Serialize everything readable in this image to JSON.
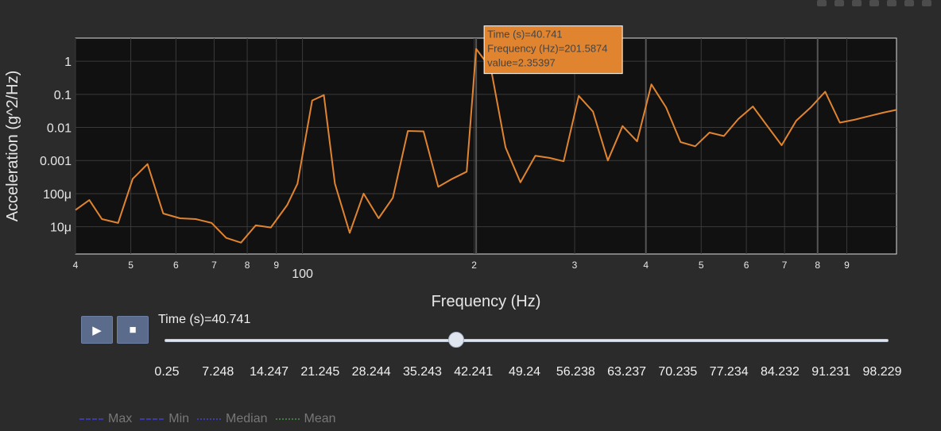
{
  "colors": {
    "background": "#2b2b2b",
    "plot_bg": "#111111",
    "line": "#e08430",
    "tooltip_bg": "#e08430",
    "tooltip_text": "#444444",
    "grid": "#3a3a3a",
    "max_min_line": "#3a3ab0",
    "median_line": "#3a3ab0",
    "mean_line": "#3f7a3f"
  },
  "chart_data": {
    "type": "line",
    "xlabel": "Frequency (Hz)",
    "ylabel": "Acceleration (g^2/Hz)",
    "x_scale": "log",
    "y_scale": "log",
    "xlim": [
      40,
      1100
    ],
    "ylim": [
      1.5e-06,
      5
    ],
    "x_ticks": [
      {
        "v": 40,
        "label": "4"
      },
      {
        "v": 50,
        "label": "5"
      },
      {
        "v": 60,
        "label": "6"
      },
      {
        "v": 70,
        "label": "7"
      },
      {
        "v": 80,
        "label": "8"
      },
      {
        "v": 90,
        "label": "9"
      },
      {
        "v": 100,
        "label": "100"
      },
      {
        "v": 200,
        "label": "2"
      },
      {
        "v": 300,
        "label": "3"
      },
      {
        "v": 400,
        "label": "4"
      },
      {
        "v": 500,
        "label": "5"
      },
      {
        "v": 600,
        "label": "6"
      },
      {
        "v": 700,
        "label": "7"
      },
      {
        "v": 800,
        "label": "8"
      },
      {
        "v": 900,
        "label": "9"
      }
    ],
    "y_ticks": [
      {
        "v": 1e-05,
        "label": "10μ"
      },
      {
        "v": 0.0001,
        "label": "100μ"
      },
      {
        "v": 0.001,
        "label": "0.001"
      },
      {
        "v": 0.01,
        "label": "0.01"
      },
      {
        "v": 0.1,
        "label": "0.1"
      },
      {
        "v": 1,
        "label": "1"
      }
    ],
    "series": [
      {
        "x": [
          40,
          42.3,
          44.5,
          47.5,
          50.4,
          53.5,
          57.0,
          61.0,
          65.0,
          69.3,
          73.5,
          78.0,
          82.8,
          88.0,
          94.0,
          98.0,
          104,
          109,
          114,
          121,
          128,
          136,
          144,
          153,
          163,
          173,
          183,
          194,
          201.6,
          214,
          227,
          241,
          256,
          271,
          287,
          305,
          323,
          343,
          364,
          386,
          409,
          434,
          460,
          488,
          517,
          548,
          581,
          616,
          653,
          692,
          734,
          778,
          825,
          875,
          928,
          984,
          1043,
          1100
        ],
        "y": [
          3.2e-05,
          6.4e-05,
          1.7e-05,
          1.3e-05,
          0.00028,
          0.00078,
          2.5e-05,
          1.8e-05,
          1.7e-05,
          1.3e-05,
          4.6e-06,
          3.3e-06,
          1.1e-05,
          9.5e-06,
          4.5e-05,
          0.0002,
          0.065,
          0.095,
          0.0002,
          6.5e-06,
          0.0001,
          1.8e-05,
          7.5e-05,
          0.0078,
          0.0076,
          0.00016,
          0.00028,
          0.00046,
          2.35397,
          0.6,
          0.0025,
          0.00022,
          0.0014,
          0.0012,
          0.00095,
          0.09,
          0.03,
          0.001,
          0.011,
          0.0038,
          0.2,
          0.04,
          0.0036,
          0.0027,
          0.007,
          0.0055,
          0.018,
          0.043,
          0.011,
          0.0029,
          0.016,
          0.04,
          0.12,
          0.014,
          0.017,
          0.022,
          0.028,
          0.034
        ]
      }
    ],
    "highlight_index": 28,
    "vertical_markers": [
      201.6,
      400,
      800
    ],
    "tooltip": [
      "Time (s)=40.741",
      "Frequency (Hz)=201.5874",
      "value=2.35397"
    ]
  },
  "controls": {
    "play_icon": "▶",
    "stop_icon": "■",
    "current_label": "Time (s)=40.741",
    "current_value_fraction": 0.4032,
    "steps": [
      "0.25",
      "7.248",
      "14.247",
      "21.245",
      "28.244",
      "35.243",
      "42.241",
      "49.24",
      "56.238",
      "63.237",
      "70.235",
      "77.234",
      "84.232",
      "91.231",
      "98.229"
    ]
  },
  "legend": [
    {
      "label": "Max",
      "style": "dash"
    },
    {
      "label": "Min",
      "style": "dash"
    },
    {
      "label": "Median",
      "style": "dot"
    },
    {
      "label": "Mean",
      "style": "mean"
    }
  ]
}
